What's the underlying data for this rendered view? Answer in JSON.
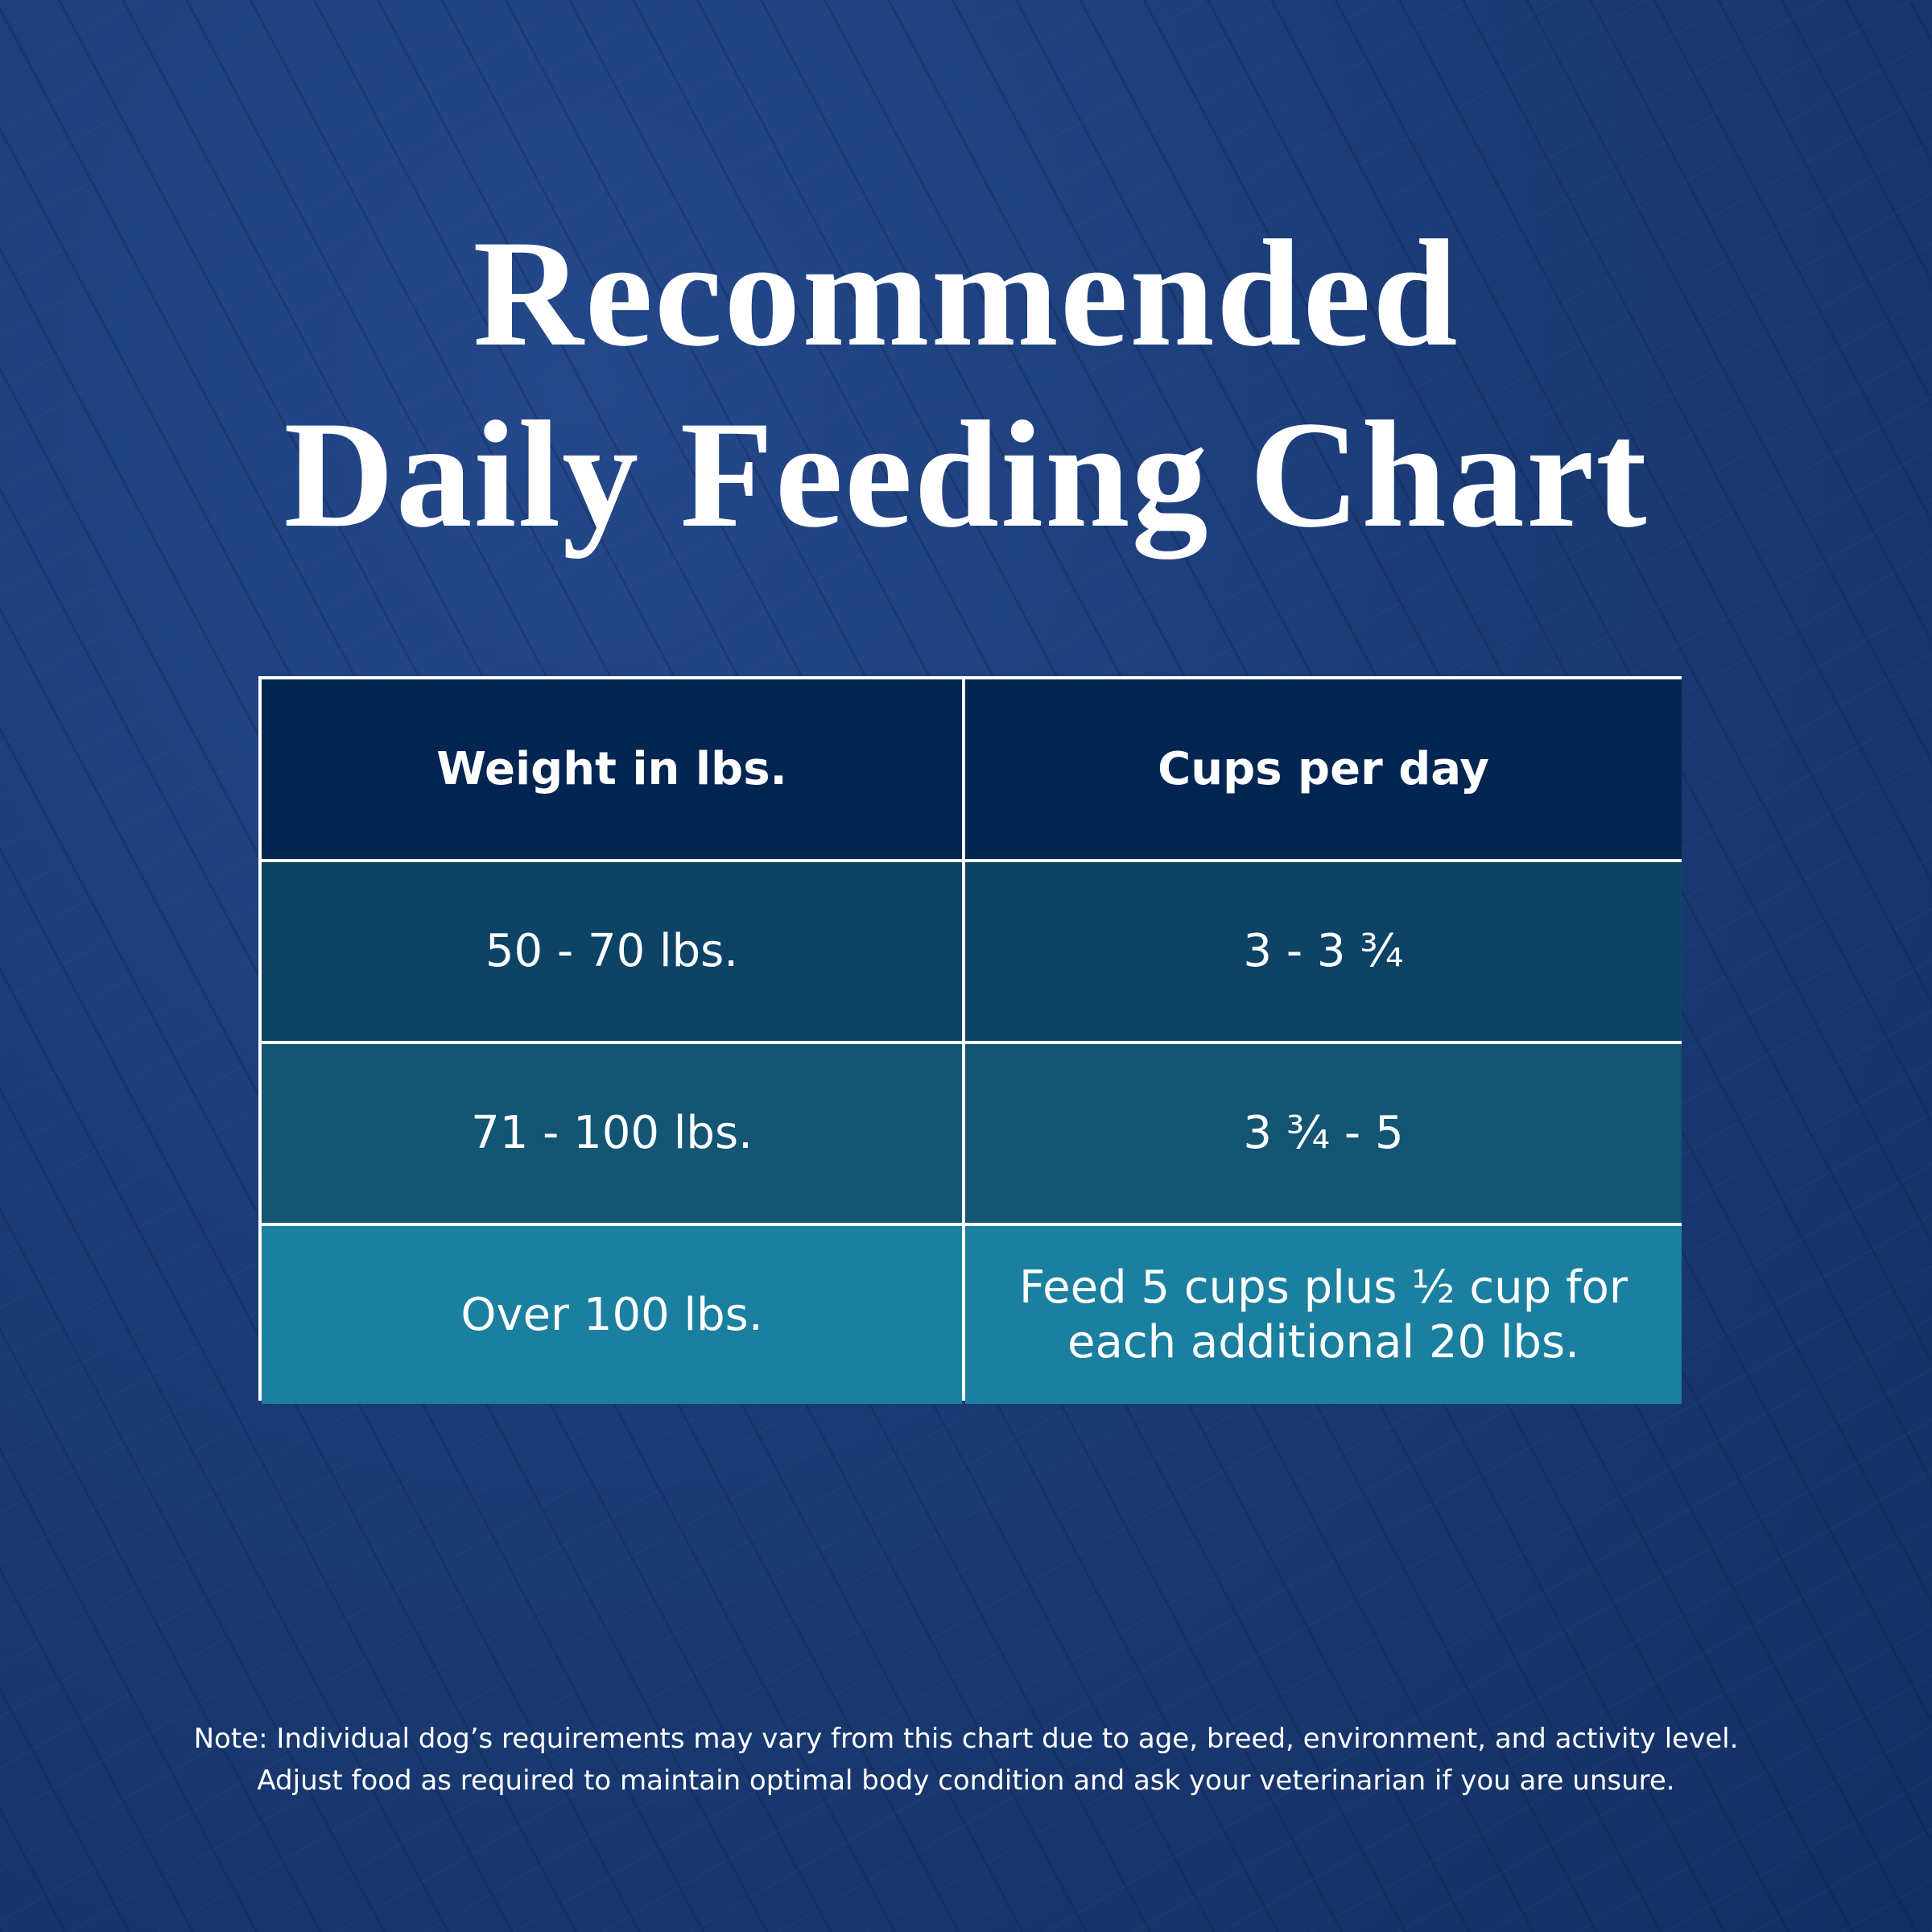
{
  "title": {
    "lines": [
      "Recommended",
      "Daily Feeding Chart"
    ]
  },
  "table": {
    "header": [
      "Weight in lbs.",
      "Cups per day"
    ],
    "rows": [
      [
        "50 - 70 lbs.",
        "3 - 3 ¾"
      ],
      [
        "71 - 100 lbs.",
        "3 ¾ - 5"
      ],
      [
        "Over 100 lbs.",
        [
          "Feed 5 cups plus ½ cup for",
          "each additional 20 lbs."
        ]
      ]
    ]
  },
  "note": {
    "lines": [
      "Note: Individual dog’s requirements may vary from this chart due to age, breed, environment, and activity level.",
      "Adjust food as required to maintain optimal body condition and ask your veterinarian if you are unsure."
    ]
  }
}
